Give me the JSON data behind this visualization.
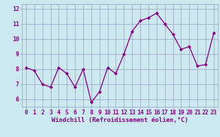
{
  "x": [
    0,
    1,
    2,
    3,
    4,
    5,
    6,
    7,
    8,
    9,
    10,
    11,
    12,
    13,
    14,
    15,
    16,
    17,
    18,
    19,
    20,
    21,
    22,
    23
  ],
  "y": [
    8.1,
    7.9,
    7.0,
    6.8,
    8.1,
    7.7,
    6.8,
    8.0,
    5.8,
    6.5,
    8.1,
    7.7,
    9.0,
    10.5,
    11.2,
    11.4,
    11.7,
    11.0,
    10.3,
    9.3,
    9.5,
    8.2,
    8.3,
    10.4
  ],
  "line_color": "#880088",
  "marker": "D",
  "markersize": 2.2,
  "linewidth": 1.0,
  "xlabel": "Windchill (Refroidissement éolien,°C)",
  "xlabel_fontsize": 6.5,
  "ylim": [
    5.5,
    12.3
  ],
  "xlim": [
    -0.5,
    23.5
  ],
  "yticks": [
    6,
    7,
    8,
    9,
    10,
    11,
    12
  ],
  "xticks": [
    0,
    1,
    2,
    3,
    4,
    5,
    6,
    7,
    8,
    9,
    10,
    11,
    12,
    13,
    14,
    15,
    16,
    17,
    18,
    19,
    20,
    21,
    22,
    23
  ],
  "background_color": "#cce9f0",
  "grid_color": "#9999bb",
  "tick_fontsize": 6.0
}
